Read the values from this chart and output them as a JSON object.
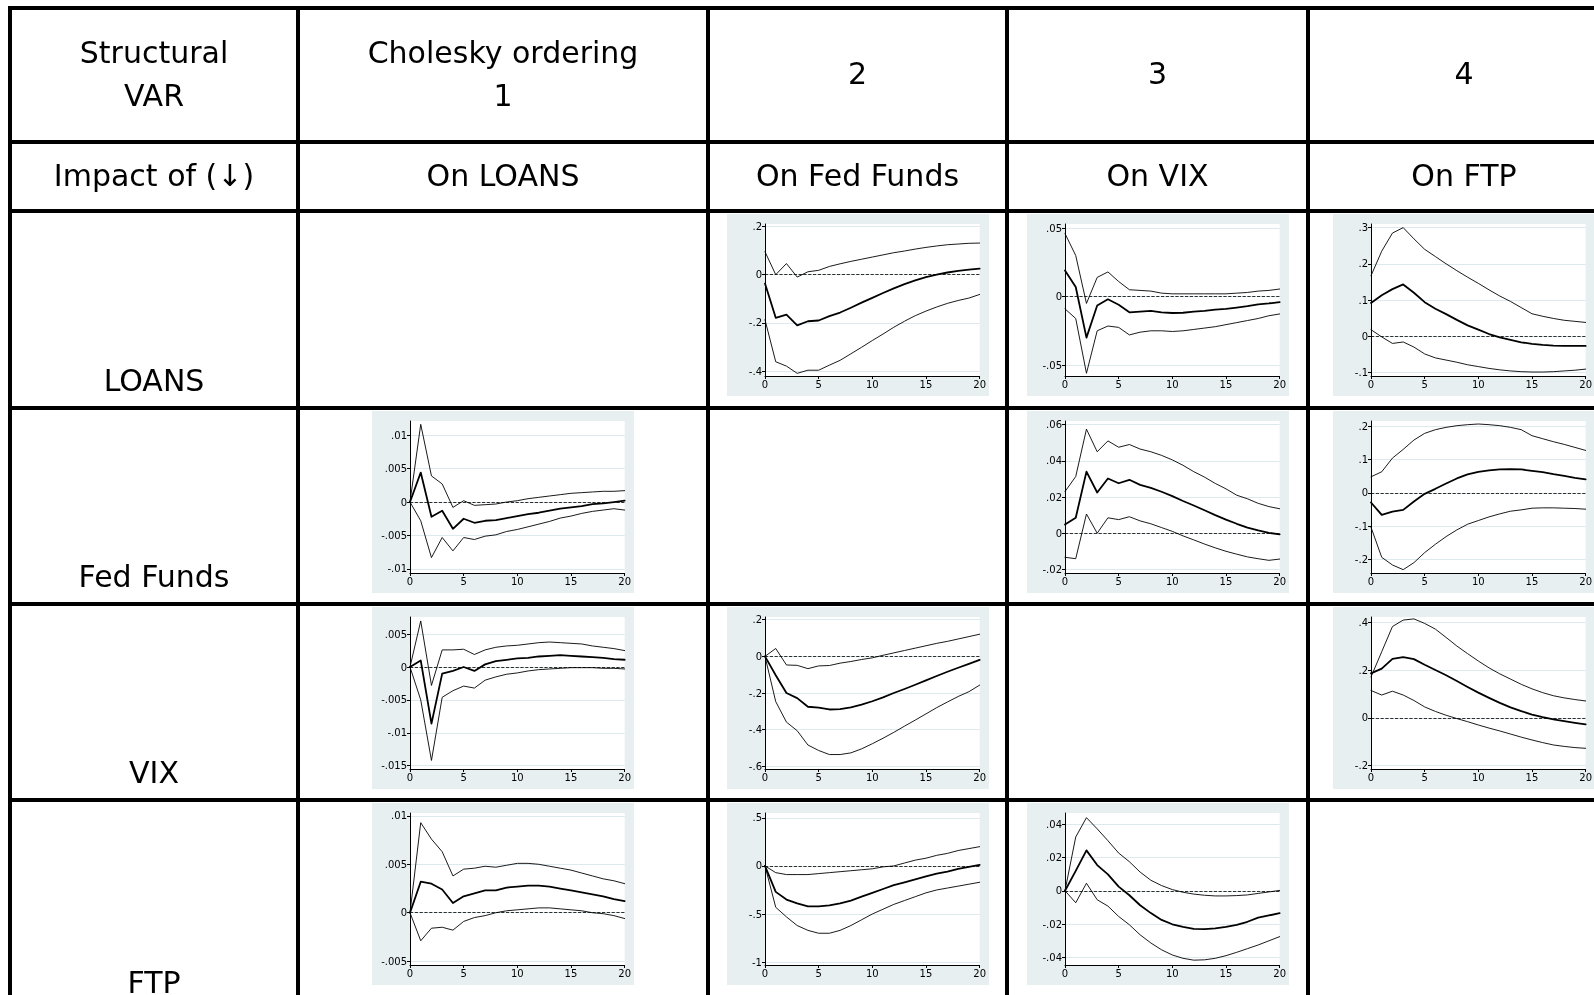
{
  "chart_data": [
    {
      "type": "other",
      "annotations": [
        "Structural\nVAR",
        "Cholesky ordering\n1",
        "2",
        "3",
        "4",
        "Impact of (↓)",
        "On LOANS",
        "On Fed Funds",
        "On VIX",
        "On FTP",
        "LOANS",
        "Fed Funds",
        "VIX",
        "FTP"
      ]
    },
    {
      "type": "line",
      "x": [
        0,
        1,
        2,
        3,
        4,
        5,
        6,
        7,
        8,
        9,
        10,
        11,
        12,
        13,
        14,
        15,
        16,
        17,
        18,
        19,
        20
      ],
      "xlim": [
        0,
        20
      ],
      "xticks": [
        0,
        5,
        10,
        15,
        20
      ],
      "ylim": [
        -0.42,
        0.21
      ],
      "yticks": [
        {
          "value": -0.4,
          "label": "-.4"
        },
        {
          "value": -0.2,
          "label": "-.2"
        },
        {
          "value": 0,
          "label": "0"
        },
        {
          "value": 0.2,
          "label": ".2"
        }
      ],
      "grid": "y",
      "marker": "none",
      "ref_lines": [
        {
          "axis": "y",
          "value": 0,
          "line_style": "dashed"
        }
      ],
      "series": [
        {
          "color": "#000000",
          "values": [
            -0.187,
            -0.361,
            -0.379,
            -0.409,
            -0.396,
            -0.396,
            -0.375,
            -0.355,
            -0.328,
            -0.301,
            -0.273,
            -0.246,
            -0.218,
            -0.193,
            -0.17,
            -0.151,
            -0.134,
            -0.119,
            -0.107,
            -0.097,
            -0.082
          ]
        },
        {
          "color": "#000000",
          "values": [
            -0.037,
            -0.179,
            -0.166,
            -0.21,
            -0.193,
            -0.19,
            -0.172,
            -0.157,
            -0.137,
            -0.116,
            -0.096,
            -0.076,
            -0.057,
            -0.039,
            -0.024,
            -0.01,
            0,
            0.009,
            0.016,
            0.021,
            0.025
          ]
        },
        {
          "color": "#000000",
          "values": [
            0.095,
            0,
            0.046,
            -0.01,
            0.012,
            0.018,
            0.034,
            0.045,
            0.055,
            0.064,
            0.073,
            0.082,
            0.091,
            0.098,
            0.106,
            0.113,
            0.119,
            0.124,
            0.127,
            0.13,
            0.131
          ]
        }
      ]
    },
    {
      "type": "line",
      "x": [
        0,
        1,
        2,
        3,
        4,
        5,
        6,
        7,
        8,
        9,
        10,
        11,
        12,
        13,
        14,
        15,
        16,
        17,
        18,
        19,
        20
      ],
      "xlim": [
        0,
        20
      ],
      "xticks": [
        0,
        5,
        10,
        15,
        20
      ],
      "ylim": [
        -0.058,
        0.053
      ],
      "yticks": [
        {
          "value": -0.05,
          "label": "-.05"
        },
        {
          "value": 0,
          "label": "0"
        },
        {
          "value": 0.05,
          "label": ".05"
        }
      ],
      "grid": "y",
      "marker": "none",
      "ref_lines": [
        {
          "axis": "y",
          "value": 0,
          "line_style": "dashed"
        }
      ],
      "series": [
        {
          "color": "#000000",
          "values": [
            -0.009,
            -0.016,
            -0.056,
            -0.025,
            -0.0215,
            -0.0225,
            -0.028,
            -0.026,
            -0.025,
            -0.025,
            -0.0255,
            -0.025,
            -0.024,
            -0.023,
            -0.022,
            -0.0205,
            -0.019,
            -0.0175,
            -0.016,
            -0.014,
            -0.0127
          ]
        },
        {
          "color": "#000000",
          "values": [
            0.019,
            0.007,
            -0.03,
            -0.0065,
            -0.002,
            -0.006,
            -0.0115,
            -0.011,
            -0.0105,
            -0.0115,
            -0.012,
            -0.0118,
            -0.011,
            -0.0105,
            -0.0095,
            -0.009,
            -0.008,
            -0.007,
            -0.0057,
            -0.005,
            -0.004
          ]
        },
        {
          "color": "#000000",
          "values": [
            0.046,
            0.03,
            -0.005,
            0.014,
            0.018,
            0.011,
            0.005,
            0.0045,
            0.004,
            0.0025,
            0.002,
            0.002,
            0.002,
            0.002,
            0.002,
            0.002,
            0.0025,
            0.003,
            0.004,
            0.0045,
            0.0055
          ]
        }
      ]
    },
    {
      "type": "line",
      "x": [
        0,
        1,
        2,
        3,
        4,
        5,
        6,
        7,
        8,
        9,
        10,
        11,
        12,
        13,
        14,
        15,
        16,
        17,
        18,
        19,
        20
      ],
      "xlim": [
        0,
        20
      ],
      "xticks": [
        0,
        5,
        10,
        15,
        20
      ],
      "ylim": [
        -0.11,
        0.31
      ],
      "yticks": [
        {
          "value": -0.1,
          "label": "-.1"
        },
        {
          "value": 0,
          "label": "0"
        },
        {
          "value": 0.1,
          "label": ".1"
        },
        {
          "value": 0.2,
          "label": ".2"
        },
        {
          "value": 0.3,
          "label": ".3"
        }
      ],
      "grid": "y",
      "marker": "none",
      "ref_lines": [
        {
          "axis": "y",
          "value": 0,
          "line_style": "dashed"
        }
      ],
      "series": [
        {
          "color": "#000000",
          "values": [
            0.018,
            -0.002,
            -0.02,
            -0.016,
            -0.03,
            -0.049,
            -0.06,
            -0.066,
            -0.072,
            -0.079,
            -0.084,
            -0.089,
            -0.093,
            -0.096,
            -0.098,
            -0.099,
            -0.099,
            -0.098,
            -0.096,
            -0.094,
            -0.091
          ]
        },
        {
          "color": "#000000",
          "values": [
            0.092,
            0.113,
            0.13,
            0.143,
            0.12,
            0.094,
            0.076,
            0.061,
            0.045,
            0.03,
            0.018,
            0.006,
            -0.003,
            -0.01,
            -0.017,
            -0.021,
            -0.024,
            -0.026,
            -0.027,
            -0.027,
            -0.027
          ]
        },
        {
          "color": "#000000",
          "values": [
            0.167,
            0.235,
            0.285,
            0.3,
            0.269,
            0.24,
            0.22,
            0.2,
            0.181,
            0.163,
            0.146,
            0.128,
            0.111,
            0.096,
            0.079,
            0.062,
            0.055,
            0.049,
            0.044,
            0.041,
            0.038
          ]
        }
      ]
    },
    {
      "type": "line",
      "x": [
        0,
        1,
        2,
        3,
        4,
        5,
        6,
        7,
        8,
        9,
        10,
        11,
        12,
        13,
        14,
        15,
        16,
        17,
        18,
        19,
        20
      ],
      "xlim": [
        0,
        20
      ],
      "xticks": [
        0,
        5,
        10,
        15,
        20
      ],
      "ylim": [
        -0.0106,
        0.0121
      ],
      "yticks": [
        {
          "value": -0.01,
          "label": "-.01"
        },
        {
          "value": -0.005,
          "label": "-.005"
        },
        {
          "value": 0,
          "label": "0"
        },
        {
          "value": 0.005,
          "label": ".005"
        },
        {
          "value": 0.01,
          "label": ".01"
        }
      ],
      "grid": "y",
      "marker": "none",
      "ref_lines": [
        {
          "axis": "y",
          "value": 0,
          "line_style": "dashed"
        }
      ],
      "series": [
        {
          "color": "#000000",
          "values": [
            0,
            -0.0028,
            -0.0083,
            -0.0053,
            -0.0073,
            -0.0053,
            -0.0056,
            -0.0051,
            -0.0049,
            -0.0044,
            -0.0041,
            -0.0037,
            -0.0033,
            -0.0029,
            -0.0024,
            -0.0021,
            -0.0017,
            -0.0014,
            -0.0012,
            -0.001,
            -0.0012
          ]
        },
        {
          "color": "#000000",
          "values": [
            0,
            0.0044,
            -0.0022,
            -0.0013,
            -0.004,
            -0.0025,
            -0.0031,
            -0.0028,
            -0.0027,
            -0.0024,
            -0.0021,
            -0.0018,
            -0.0016,
            -0.0013,
            -0.001,
            -0.0008,
            -0.0006,
            -0.0003,
            -0.0002,
            0,
            0.0002
          ]
        },
        {
          "color": "#000000",
          "values": [
            0,
            0.0116,
            0.0039,
            0.0027,
            -0.0008,
            0.0002,
            -0.0005,
            -0.0004,
            -0.0003,
            0,
            0.0002,
            0.0005,
            0.0007,
            0.0009,
            0.0011,
            0.0013,
            0.0014,
            0.0015,
            0.0016,
            0.0016,
            0.0017
          ]
        }
      ]
    },
    {
      "type": "line",
      "x": [
        0,
        1,
        2,
        3,
        4,
        5,
        6,
        7,
        8,
        9,
        10,
        11,
        12,
        13,
        14,
        15,
        16,
        17,
        18,
        19,
        20
      ],
      "xlim": [
        0,
        20
      ],
      "xticks": [
        0,
        5,
        10,
        15,
        20
      ],
      "ylim": [
        -0.022,
        0.062
      ],
      "yticks": [
        {
          "value": -0.02,
          "label": "-.02"
        },
        {
          "value": 0,
          "label": "0"
        },
        {
          "value": 0.02,
          "label": ".02"
        },
        {
          "value": 0.04,
          "label": ".04"
        },
        {
          "value": 0.06,
          "label": ".06"
        }
      ],
      "grid": "y",
      "marker": "none",
      "ref_lines": [
        {
          "axis": "y",
          "value": 0,
          "line_style": "dashed"
        }
      ],
      "series": [
        {
          "color": "#000000",
          "values": [
            -0.0133,
            -0.0141,
            0.0106,
            0,
            0.0085,
            0.0075,
            0.0091,
            0.0068,
            0.0052,
            0.0031,
            0.001,
            -0.0015,
            -0.0037,
            -0.006,
            -0.0081,
            -0.01,
            -0.0116,
            -0.0131,
            -0.0141,
            -0.015,
            -0.0143
          ]
        },
        {
          "color": "#000000",
          "values": [
            0.0048,
            0.0085,
            0.034,
            0.0225,
            0.0302,
            0.0276,
            0.0295,
            0.0267,
            0.025,
            0.0229,
            0.0205,
            0.0178,
            0.0153,
            0.0127,
            0.01,
            0.0075,
            0.0052,
            0.0031,
            0.0015,
            0.0002,
            -0.0006
          ]
        },
        {
          "color": "#000000",
          "values": [
            0.023,
            0.0313,
            0.0575,
            0.045,
            0.051,
            0.0475,
            0.049,
            0.0465,
            0.045,
            0.043,
            0.0405,
            0.0375,
            0.034,
            0.031,
            0.0275,
            0.0245,
            0.021,
            0.019,
            0.0165,
            0.0147,
            0.0135
          ]
        }
      ]
    },
    {
      "type": "line",
      "x": [
        0,
        1,
        2,
        3,
        4,
        5,
        6,
        7,
        8,
        9,
        10,
        11,
        12,
        13,
        14,
        15,
        16,
        17,
        18,
        19,
        20
      ],
      "xlim": [
        0,
        20
      ],
      "xticks": [
        0,
        5,
        10,
        15,
        20
      ],
      "ylim": [
        -0.24,
        0.215
      ],
      "yticks": [
        {
          "value": -0.2,
          "label": "-.2"
        },
        {
          "value": -0.1,
          "label": "-.1"
        },
        {
          "value": 0,
          "label": "0"
        },
        {
          "value": 0.1,
          "label": ".1"
        },
        {
          "value": 0.2,
          "label": ".2"
        }
      ],
      "grid": "y",
      "marker": "none",
      "ref_lines": [
        {
          "axis": "y",
          "value": 0,
          "line_style": "dashed"
        }
      ],
      "series": [
        {
          "color": "#000000",
          "values": [
            -0.103,
            -0.193,
            -0.216,
            -0.23,
            -0.209,
            -0.179,
            -0.154,
            -0.131,
            -0.111,
            -0.094,
            -0.083,
            -0.072,
            -0.063,
            -0.055,
            -0.051,
            -0.046,
            -0.045,
            -0.045,
            -0.046,
            -0.047,
            -0.049
          ]
        },
        {
          "color": "#000000",
          "values": [
            -0.029,
            -0.066,
            -0.056,
            -0.051,
            -0.026,
            -0.003,
            0.012,
            0.028,
            0.043,
            0.055,
            0.063,
            0.067,
            0.07,
            0.071,
            0.07,
            0.066,
            0.062,
            0.056,
            0.051,
            0.045,
            0.04
          ]
        },
        {
          "color": "#000000",
          "values": [
            0.048,
            0.063,
            0.104,
            0.13,
            0.158,
            0.178,
            0.189,
            0.196,
            0.201,
            0.204,
            0.206,
            0.204,
            0.201,
            0.196,
            0.189,
            0.171,
            0.162,
            0.153,
            0.145,
            0.136,
            0.127
          ]
        }
      ]
    },
    {
      "type": "line",
      "x": [
        0,
        1,
        2,
        3,
        4,
        5,
        6,
        7,
        8,
        9,
        10,
        11,
        12,
        13,
        14,
        15,
        16,
        17,
        18,
        19,
        20
      ],
      "xlim": [
        0,
        20
      ],
      "xticks": [
        0,
        5,
        10,
        15,
        20
      ],
      "ylim": [
        -0.0155,
        0.0076
      ],
      "yticks": [
        {
          "value": -0.015,
          "label": "-.015"
        },
        {
          "value": -0.01,
          "label": "-.01"
        },
        {
          "value": -0.005,
          "label": "-.005"
        },
        {
          "value": 0,
          "label": "0"
        },
        {
          "value": 0.005,
          "label": ".005"
        }
      ],
      "grid": "y",
      "marker": "none",
      "ref_lines": [
        {
          "axis": "y",
          "value": 0,
          "line_style": "dashed"
        }
      ],
      "series": [
        {
          "color": "#000000",
          "values": [
            0,
            -0.005,
            -0.0142,
            -0.0046,
            -0.0036,
            -0.0029,
            -0.0032,
            -0.002,
            -0.0015,
            -0.0011,
            -0.0009,
            -0.0006,
            -0.0004,
            -0.0003,
            -0.0002,
            -0.0001,
            -0.0001,
            -0.0001,
            -0.0002,
            -0.0002,
            -0.0003
          ]
        },
        {
          "color": "#000000",
          "values": [
            0,
            0.001,
            -0.0086,
            -0.001,
            -0.0006,
            0,
            -0.0006,
            0.0004,
            0.0009,
            0.0011,
            0.0013,
            0.0014,
            0.0016,
            0.0017,
            0.0018,
            0.0017,
            0.0016,
            0.0015,
            0.0014,
            0.0012,
            0.0011
          ]
        },
        {
          "color": "#000000",
          "values": [
            0,
            0.007,
            -0.0028,
            0.0026,
            0.0026,
            0.0027,
            0.0019,
            0.0026,
            0.003,
            0.0032,
            0.0033,
            0.0035,
            0.0037,
            0.0038,
            0.0037,
            0.0036,
            0.0035,
            0.0032,
            0.003,
            0.0028,
            0.0025
          ]
        }
      ]
    },
    {
      "type": "line",
      "x": [
        0,
        1,
        2,
        3,
        4,
        5,
        6,
        7,
        8,
        9,
        10,
        11,
        12,
        13,
        14,
        15,
        16,
        17,
        18,
        19,
        20
      ],
      "xlim": [
        0,
        20
      ],
      "xticks": [
        0,
        5,
        10,
        15,
        20
      ],
      "ylim": [
        -0.615,
        0.215
      ],
      "yticks": [
        {
          "value": -0.6,
          "label": "-.6"
        },
        {
          "value": -0.4,
          "label": "-.4"
        },
        {
          "value": -0.2,
          "label": "-.2"
        },
        {
          "value": 0,
          "label": "0"
        },
        {
          "value": 0.2,
          "label": ".2"
        }
      ],
      "grid": "y",
      "marker": "none",
      "ref_lines": [
        {
          "axis": "y",
          "value": 0,
          "line_style": "dashed"
        }
      ],
      "series": [
        {
          "color": "#000000",
          "values": [
            0,
            -0.247,
            -0.359,
            -0.406,
            -0.484,
            -0.514,
            -0.536,
            -0.536,
            -0.527,
            -0.505,
            -0.477,
            -0.447,
            -0.415,
            -0.381,
            -0.348,
            -0.314,
            -0.28,
            -0.249,
            -0.219,
            -0.193,
            -0.157
          ]
        },
        {
          "color": "#000000",
          "values": [
            0,
            -0.103,
            -0.2,
            -0.228,
            -0.275,
            -0.28,
            -0.29,
            -0.288,
            -0.278,
            -0.264,
            -0.245,
            -0.224,
            -0.2,
            -0.178,
            -0.155,
            -0.131,
            -0.107,
            -0.084,
            -0.062,
            -0.041,
            -0.019
          ]
        },
        {
          "color": "#000000",
          "values": [
            0,
            0.043,
            -0.047,
            -0.049,
            -0.067,
            -0.052,
            -0.05,
            -0.037,
            -0.028,
            -0.017,
            -0.008,
            0.006,
            0.019,
            0.032,
            0.045,
            0.058,
            0.071,
            0.082,
            0.095,
            0.108,
            0.121
          ]
        }
      ]
    },
    {
      "type": "line",
      "x": [
        0,
        1,
        2,
        3,
        4,
        5,
        6,
        7,
        8,
        9,
        10,
        11,
        12,
        13,
        14,
        15,
        16,
        17,
        18,
        19,
        20
      ],
      "xlim": [
        0,
        20
      ],
      "xticks": [
        0,
        5,
        10,
        15,
        20
      ],
      "ylim": [
        -0.215,
        0.424
      ],
      "yticks": [
        {
          "value": -0.2,
          "label": "-.2"
        },
        {
          "value": 0,
          "label": "0"
        },
        {
          "value": 0.2,
          "label": ".2"
        },
        {
          "value": 0.4,
          "label": ".4"
        }
      ],
      "grid": "y",
      "marker": "none",
      "ref_lines": [
        {
          "axis": "y",
          "value": 0,
          "line_style": "dashed"
        }
      ],
      "series": [
        {
          "color": "#000000",
          "values": [
            0.115,
            0.096,
            0.112,
            0.096,
            0.073,
            0.046,
            0.027,
            0.011,
            -0.003,
            -0.016,
            -0.03,
            -0.043,
            -0.055,
            -0.068,
            -0.081,
            -0.093,
            -0.104,
            -0.114,
            -0.12,
            -0.125,
            -0.128
          ]
        },
        {
          "color": "#000000",
          "values": [
            0.187,
            0.207,
            0.248,
            0.255,
            0.247,
            0.223,
            0.201,
            0.179,
            0.155,
            0.13,
            0.106,
            0.084,
            0.063,
            0.044,
            0.028,
            0.014,
            0.003,
            -0.006,
            -0.014,
            -0.021,
            -0.027
          ]
        },
        {
          "color": "#000000",
          "values": [
            0.172,
            0.278,
            0.384,
            0.411,
            0.416,
            0.397,
            0.373,
            0.338,
            0.302,
            0.27,
            0.239,
            0.21,
            0.185,
            0.163,
            0.141,
            0.122,
            0.106,
            0.093,
            0.084,
            0.077,
            0.071
          ]
        }
      ]
    },
    {
      "type": "line",
      "x": [
        0,
        1,
        2,
        3,
        4,
        5,
        6,
        7,
        8,
        9,
        10,
        11,
        12,
        13,
        14,
        15,
        16,
        17,
        18,
        19,
        20
      ],
      "xlim": [
        0,
        20
      ],
      "xticks": [
        0,
        5,
        10,
        15,
        20
      ],
      "ylim": [
        -0.0054,
        0.0103
      ],
      "yticks": [
        {
          "value": -0.005,
          "label": "-.005"
        },
        {
          "value": 0,
          "label": "0"
        },
        {
          "value": 0.005,
          "label": ".005"
        },
        {
          "value": 0.01,
          "label": ".01"
        }
      ],
      "grid": "y",
      "marker": "none",
      "ref_lines": [
        {
          "axis": "y",
          "value": 0,
          "line_style": "dashed"
        }
      ],
      "series": [
        {
          "color": "#000000",
          "values": [
            0,
            -0.0029,
            -0.0016,
            -0.0015,
            -0.0018,
            -0.0009,
            -0.0005,
            -0.0003,
            0,
            0.0002,
            0.0003,
            0.0004,
            0.0005,
            0.0005,
            0.0004,
            0.0003,
            0.0002,
            0,
            -0.0001,
            -0.0003,
            -0.0006
          ]
        },
        {
          "color": "#000000",
          "values": [
            0,
            0.0032,
            0.003,
            0.0024,
            0.001,
            0.0017,
            0.002,
            0.0023,
            0.0023,
            0.0026,
            0.0027,
            0.0028,
            0.0028,
            0.0027,
            0.0025,
            0.0023,
            0.0021,
            0.0019,
            0.0017,
            0.0014,
            0.0012
          ]
        },
        {
          "color": "#000000",
          "values": [
            0,
            0.0093,
            0.0076,
            0.0063,
            0.0038,
            0.0045,
            0.0046,
            0.0048,
            0.0047,
            0.0049,
            0.0051,
            0.0051,
            0.005,
            0.0048,
            0.0046,
            0.0044,
            0.0041,
            0.0038,
            0.0035,
            0.0033,
            0.003
          ]
        }
      ]
    },
    {
      "type": "line",
      "x": [
        0,
        1,
        2,
        3,
        4,
        5,
        6,
        7,
        8,
        9,
        10,
        11,
        12,
        13,
        14,
        15,
        16,
        17,
        18,
        19,
        20
      ],
      "xlim": [
        0,
        20
      ],
      "xticks": [
        0,
        5,
        10,
        15,
        20
      ],
      "ylim": [
        -1.03,
        0.55
      ],
      "yticks": [
        {
          "value": -1,
          "label": "-1"
        },
        {
          "value": -0.5,
          "label": "-.5"
        },
        {
          "value": 0,
          "label": "0"
        },
        {
          "value": 0.5,
          "label": ".5"
        }
      ],
      "grid": "y",
      "marker": "none",
      "ref_lines": [
        {
          "axis": "y",
          "value": 0,
          "line_style": "dashed"
        }
      ],
      "series": [
        {
          "color": "#000000",
          "values": [
            0,
            -0.43,
            -0.53,
            -0.62,
            -0.67,
            -0.7,
            -0.7,
            -0.67,
            -0.62,
            -0.56,
            -0.5,
            -0.45,
            -0.4,
            -0.36,
            -0.32,
            -0.28,
            -0.25,
            -0.23,
            -0.21,
            -0.19,
            -0.17
          ]
        },
        {
          "color": "#000000",
          "values": [
            0,
            -0.27,
            -0.35,
            -0.39,
            -0.42,
            -0.42,
            -0.41,
            -0.39,
            -0.36,
            -0.32,
            -0.28,
            -0.24,
            -0.2,
            -0.17,
            -0.14,
            -0.11,
            -0.08,
            -0.06,
            -0.03,
            -0.01,
            0.01
          ]
        },
        {
          "color": "#000000",
          "values": [
            0,
            -0.07,
            -0.09,
            -0.09,
            -0.09,
            -0.08,
            -0.07,
            -0.06,
            -0.05,
            -0.04,
            -0.03,
            -0.01,
            0,
            0.03,
            0.06,
            0.08,
            0.11,
            0.13,
            0.16,
            0.18,
            0.2
          ]
        }
      ]
    },
    {
      "type": "line",
      "x": [
        0,
        1,
        2,
        3,
        4,
        5,
        6,
        7,
        8,
        9,
        10,
        11,
        12,
        13,
        14,
        15,
        16,
        17,
        18,
        19,
        20
      ],
      "xlim": [
        0,
        20
      ],
      "xticks": [
        0,
        5,
        10,
        15,
        20
      ],
      "ylim": [
        -0.0445,
        0.0466
      ],
      "yticks": [
        {
          "value": -0.04,
          "label": "-.04"
        },
        {
          "value": -0.02,
          "label": "-.02"
        },
        {
          "value": 0,
          "label": "0"
        },
        {
          "value": 0.02,
          "label": ".02"
        },
        {
          "value": 0.04,
          "label": ".04"
        }
      ],
      "grid": "y",
      "marker": "none",
      "ref_lines": [
        {
          "axis": "y",
          "value": 0,
          "line_style": "dashed"
        }
      ],
      "series": [
        {
          "color": "#000000",
          "values": [
            0,
            -0.0072,
            0.0045,
            -0.0054,
            -0.0092,
            -0.0154,
            -0.0204,
            -0.0264,
            -0.0313,
            -0.0354,
            -0.0385,
            -0.0405,
            -0.0416,
            -0.0414,
            -0.0405,
            -0.0389,
            -0.0369,
            -0.0347,
            -0.0325,
            -0.03,
            -0.0275
          ]
        },
        {
          "color": "#000000",
          "values": [
            0,
            0.0119,
            0.0242,
            0.0154,
            0.0098,
            0.0025,
            -0.0027,
            -0.0087,
            -0.0134,
            -0.0175,
            -0.0201,
            -0.0217,
            -0.0228,
            -0.023,
            -0.0226,
            -0.0217,
            -0.0204,
            -0.0186,
            -0.0161,
            -0.0148,
            -0.0134
          ]
        },
        {
          "color": "#000000",
          "values": [
            0,
            0.0322,
            0.0438,
            0.0371,
            0.03,
            0.0226,
            0.0174,
            0.0112,
            0.0063,
            0.0031,
            0.0007,
            -0.0009,
            -0.002,
            -0.0027,
            -0.0031,
            -0.0031,
            -0.0029,
            -0.0025,
            -0.0016,
            -0.0007,
            0.0002
          ]
        }
      ]
    }
  ]
}
